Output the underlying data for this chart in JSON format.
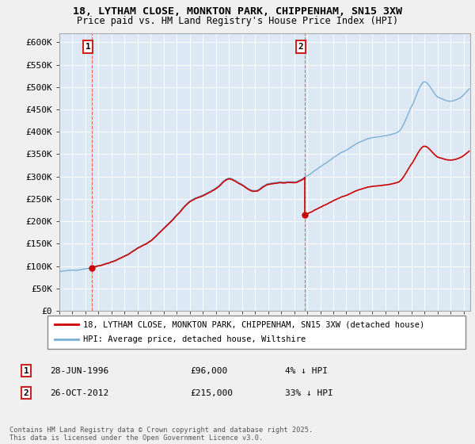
{
  "title1": "18, LYTHAM CLOSE, MONKTON PARK, CHIPPENHAM, SN15 3XW",
  "title2": "Price paid vs. HM Land Registry's House Price Index (HPI)",
  "ylim": [
    0,
    620000
  ],
  "yticks": [
    0,
    50000,
    100000,
    150000,
    200000,
    250000,
    300000,
    350000,
    400000,
    450000,
    500000,
    550000,
    600000
  ],
  "ytick_labels": [
    "£0",
    "£50K",
    "£100K",
    "£150K",
    "£200K",
    "£250K",
    "£300K",
    "£350K",
    "£400K",
    "£450K",
    "£500K",
    "£550K",
    "£600K"
  ],
  "sale1_year": 1996.49,
  "sale1_price": 96000,
  "sale2_year": 2012.82,
  "sale2_price": 215000,
  "house_color": "#cc0000",
  "hpi_color": "#7bafd4",
  "vline_color": "#dd4444",
  "legend_house": "18, LYTHAM CLOSE, MONKTON PARK, CHIPPENHAM, SN15 3XW (detached house)",
  "legend_hpi": "HPI: Average price, detached house, Wiltshire",
  "annotation1_date": "28-JUN-1996",
  "annotation1_price": "£96,000",
  "annotation1_pct": "4% ↓ HPI",
  "annotation2_date": "26-OCT-2012",
  "annotation2_price": "£215,000",
  "annotation2_pct": "33% ↓ HPI",
  "footnote": "Contains HM Land Registry data © Crown copyright and database right 2025.\nThis data is licensed under the Open Government Licence v3.0.",
  "background_color": "#f0f0f0",
  "plot_bg_color": "#dce9f5",
  "grid_color": "#ffffff",
  "xlim_left": 1994.0,
  "xlim_right": 2025.5
}
